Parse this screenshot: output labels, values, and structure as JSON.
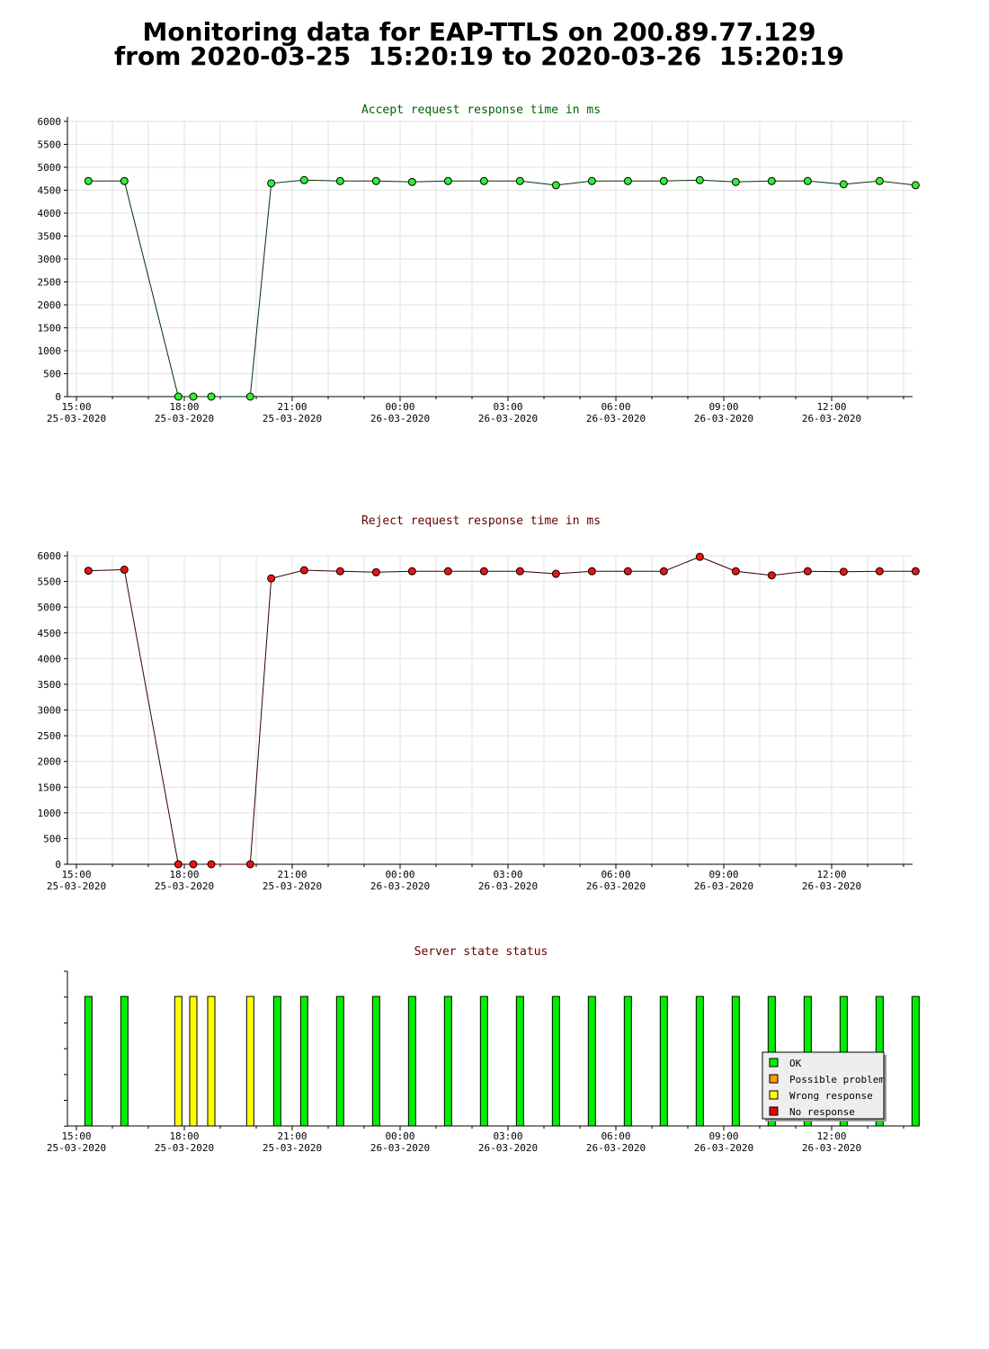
{
  "page": {
    "title_line1": "Monitoring data for EAP-TTLS on 200.89.77.129",
    "title_line2": "from 2020-03-25  15:20:19 to 2020-03-26  15:20:19"
  },
  "time_axis": {
    "ticks": [
      {
        "time": "15:00",
        "date": "25-03-2020"
      },
      {
        "time": "18:00",
        "date": "25-03-2020"
      },
      {
        "time": "21:00",
        "date": "25-03-2020"
      },
      {
        "time": "00:00",
        "date": "26-03-2020"
      },
      {
        "time": "03:00",
        "date": "26-03-2020"
      },
      {
        "time": "06:00",
        "date": "26-03-2020"
      },
      {
        "time": "09:00",
        "date": "26-03-2020"
      },
      {
        "time": "12:00",
        "date": "26-03-2020"
      }
    ]
  },
  "chart_data": [
    {
      "type": "line",
      "title": "Accept request response time in ms",
      "title_color": "#006400",
      "line_color": "#003300",
      "marker_color": "#33ee33",
      "ylim": [
        0,
        6000
      ],
      "yticks": [
        0,
        500,
        1000,
        1500,
        2000,
        2500,
        3000,
        3500,
        4000,
        4500,
        5000,
        5500,
        6000
      ],
      "grid": true,
      "x": [
        "2020-03-25 15:20",
        "2020-03-25 16:20",
        "2020-03-25 17:50",
        "2020-03-25 18:15",
        "2020-03-25 18:45",
        "2020-03-25 19:50",
        "2020-03-25 20:25",
        "2020-03-25 21:20",
        "2020-03-25 22:20",
        "2020-03-25 23:20",
        "2020-03-26 00:20",
        "2020-03-26 01:20",
        "2020-03-26 02:20",
        "2020-03-26 03:20",
        "2020-03-26 04:20",
        "2020-03-26 05:20",
        "2020-03-26 06:20",
        "2020-03-26 07:20",
        "2020-03-26 08:20",
        "2020-03-26 09:20",
        "2020-03-26 10:20",
        "2020-03-26 11:20",
        "2020-03-26 12:20",
        "2020-03-26 13:20",
        "2020-03-26 14:20"
      ],
      "values": [
        4700,
        4700,
        0,
        0,
        0,
        0,
        4650,
        4720,
        4700,
        4700,
        4680,
        4700,
        4700,
        4700,
        4610,
        4700,
        4700,
        4700,
        4720,
        4680,
        4700,
        4700,
        4630,
        4700,
        4610
      ]
    },
    {
      "type": "line",
      "title": "Reject request response time in ms",
      "title_color": "#660000",
      "line_color": "#330000",
      "marker_color": "#ee1111",
      "ylim": [
        0,
        6000
      ],
      "yticks": [
        0,
        500,
        1000,
        1500,
        2000,
        2500,
        3000,
        3500,
        4000,
        4500,
        5000,
        5500,
        6000
      ],
      "grid": true,
      "x": [
        "2020-03-25 15:20",
        "2020-03-25 16:20",
        "2020-03-25 17:50",
        "2020-03-25 18:15",
        "2020-03-25 18:45",
        "2020-03-25 19:50",
        "2020-03-25 20:25",
        "2020-03-25 21:20",
        "2020-03-25 22:20",
        "2020-03-25 23:20",
        "2020-03-26 00:20",
        "2020-03-26 01:20",
        "2020-03-26 02:20",
        "2020-03-26 03:20",
        "2020-03-26 04:20",
        "2020-03-26 05:20",
        "2020-03-26 06:20",
        "2020-03-26 07:20",
        "2020-03-26 08:20",
        "2020-03-26 09:20",
        "2020-03-26 10:20",
        "2020-03-26 11:20",
        "2020-03-26 12:20",
        "2020-03-26 13:20",
        "2020-03-26 14:20"
      ],
      "values": [
        5710,
        5730,
        0,
        0,
        0,
        0,
        5560,
        5720,
        5700,
        5680,
        5700,
        5700,
        5700,
        5700,
        5650,
        5700,
        5700,
        5700,
        5980,
        5700,
        5620,
        5700,
        5690,
        5700,
        5700
      ]
    },
    {
      "type": "bar",
      "title": "Server state status",
      "title_color": "#660000",
      "legend": [
        {
          "label": "OK",
          "color": "#00ee00"
        },
        {
          "label": "Possible problem",
          "color": "#ff9900"
        },
        {
          "label": "Wrong response",
          "color": "#ffff00"
        },
        {
          "label": "No response",
          "color": "#ee0000"
        }
      ],
      "legend_position": "bottom-right",
      "x": [
        "2020-03-25 15:20",
        "2020-03-25 16:20",
        "2020-03-25 17:50",
        "2020-03-25 18:15",
        "2020-03-25 18:45",
        "2020-03-25 19:50",
        "2020-03-25 20:35",
        "2020-03-25 21:20",
        "2020-03-25 22:20",
        "2020-03-25 23:20",
        "2020-03-26 00:20",
        "2020-03-26 01:20",
        "2020-03-26 02:20",
        "2020-03-26 03:20",
        "2020-03-26 04:20",
        "2020-03-26 05:20",
        "2020-03-26 06:20",
        "2020-03-26 07:20",
        "2020-03-26 08:20",
        "2020-03-26 09:20",
        "2020-03-26 10:20",
        "2020-03-26 11:20",
        "2020-03-26 12:20",
        "2020-03-26 13:20",
        "2020-03-26 14:20"
      ],
      "states": [
        "OK",
        "OK",
        "Wrong response",
        "Wrong response",
        "Wrong response",
        "Wrong response",
        "OK",
        "OK",
        "OK",
        "OK",
        "OK",
        "OK",
        "OK",
        "OK",
        "OK",
        "OK",
        "OK",
        "OK",
        "OK",
        "OK",
        "OK",
        "OK",
        "OK",
        "OK",
        "OK"
      ]
    }
  ]
}
